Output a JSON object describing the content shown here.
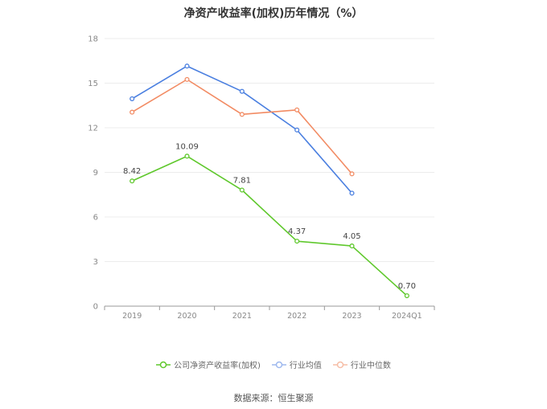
{
  "chart_data": {
    "type": "line",
    "title": "净资产收益率(加权)历年情况（%）",
    "categories": [
      "2019",
      "2020",
      "2021",
      "2022",
      "2023",
      "2024Q1"
    ],
    "ylim": [
      0,
      18
    ],
    "yticks": [
      "0",
      "3",
      "6",
      "9",
      "12",
      "15",
      "18"
    ],
    "grid": true,
    "legend_position": "bottom",
    "series": [
      {
        "name": "公司净资产收益率(加权)",
        "color": "#5fc82c",
        "values": [
          8.42,
          10.09,
          7.81,
          4.37,
          4.05,
          0.7
        ],
        "labels": [
          "8.42",
          "10.09",
          "7.81",
          "4.37",
          "4.05",
          "0.70"
        ]
      },
      {
        "name": "行业均值",
        "color": "#4a7fe0",
        "values": [
          13.95,
          16.15,
          14.45,
          11.85,
          7.6,
          null
        ]
      },
      {
        "name": "行业中位数",
        "color": "#f28b63",
        "values": [
          13.05,
          15.25,
          12.9,
          13.2,
          8.9,
          null
        ]
      }
    ]
  },
  "source_text": "数据来源：恒生聚源"
}
